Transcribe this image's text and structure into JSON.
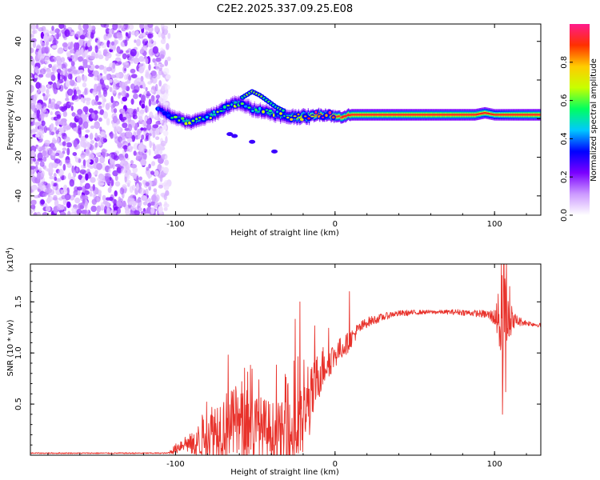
{
  "figure_title": "C2E2.2025.337.09.25.E08",
  "chart_data": [
    {
      "type": "heatmap",
      "title": "C2E2.2025.337.09.25.E08",
      "xlabel": "Height of straight line (km)",
      "ylabel": "Frequency (Hz)",
      "xlim": [
        -191,
        129
      ],
      "ylim": [
        -50,
        49
      ],
      "xticks": [
        -100,
        0,
        100
      ],
      "xtick_labels": [
        "-100",
        "0",
        "100"
      ],
      "yticks": [
        -40,
        -20,
        0,
        20,
        40
      ],
      "ytick_labels": [
        "-40",
        "-20",
        "0",
        "20",
        "40"
      ],
      "colorbar": {
        "label": "Normalized spectral amplitude",
        "range": [
          0,
          1
        ],
        "ticks": [
          0.0,
          0.2,
          0.4,
          0.6,
          0.8
        ],
        "tick_labels": [
          "0.0",
          "0.2",
          "0.4",
          "0.6",
          "0.8"
        ],
        "colormap": [
          "#ffffff",
          "#cc99ff",
          "#7a00ff",
          "#0000ff",
          "#00c8ff",
          "#00ff60",
          "#c8ff00",
          "#ffcc00",
          "#ff3000",
          "#ff1a8c"
        ]
      },
      "noise_region_x": [
        -191,
        -104
      ],
      "signal_ridge": {
        "x": [
          -111,
          -104,
          -98,
          -92,
          -86,
          -80,
          -74,
          -68,
          -62,
          -57,
          -52,
          -46,
          -41,
          -36,
          -31,
          -26,
          -21,
          -16,
          -12,
          -8,
          -4,
          0,
          4,
          10,
          20,
          35,
          50,
          65,
          80,
          88,
          94,
          100,
          106,
          115,
          129
        ],
        "frequency_hz": [
          5,
          2,
          0,
          -2,
          -1,
          1,
          3,
          6,
          8,
          7,
          5,
          4,
          3,
          2,
          1,
          1,
          1,
          1,
          2,
          2,
          2,
          1,
          1,
          2,
          2,
          2,
          2,
          2,
          2,
          2,
          3,
          2,
          2,
          2,
          2
        ],
        "amplitude": [
          0.35,
          0.45,
          0.5,
          0.55,
          0.55,
          0.5,
          0.55,
          0.6,
          0.55,
          0.5,
          0.5,
          0.55,
          0.55,
          0.55,
          0.6,
          0.7,
          0.75,
          0.8,
          0.85,
          0.88,
          0.9,
          0.92,
          0.94,
          0.96,
          0.97,
          0.97,
          0.97,
          0.97,
          0.97,
          0.95,
          0.9,
          0.85,
          0.9,
          0.95,
          0.97
        ]
      },
      "signal_branch": {
        "x": [
          -58,
          -52,
          -47,
          -42,
          -37,
          -32
        ],
        "frequency_hz": [
          11,
          14,
          12,
          9,
          6,
          4
        ]
      }
    },
    {
      "type": "line",
      "xlabel": "Height of straight line (km)",
      "ylabel": "SNR (10 * v/v)",
      "y_multiplier_label": "(x10",
      "y_multiplier_exponent": "4",
      "y_multiplier_close": ")",
      "xlim": [
        -191,
        129
      ],
      "ylim": [
        0,
        1.87
      ],
      "xticks": [
        -100,
        0,
        100
      ],
      "xtick_labels": [
        "-100",
        "0",
        "100"
      ],
      "yticks": [
        0.5,
        1.0,
        1.5
      ],
      "ytick_labels": [
        "0.5",
        "1.0",
        "1.5"
      ],
      "series": [
        {
          "name": "SNR",
          "color": "#e8322b",
          "envelope": {
            "x": [
              -191,
              -105,
              -100,
              -95,
              -88,
              -82,
              -74,
              -66,
              -58,
              -50,
              -44,
              -38,
              -32,
              -27,
              -22,
              -18,
              -14,
              -10,
              -6,
              -2,
              2,
              8,
              14,
              20,
              28,
              36,
              44,
              56,
              68,
              78,
              86,
              94,
              100,
              104,
              106,
              108,
              112,
              118,
              129
            ],
            "base": [
              0.02,
              0.02,
              0.06,
              0.12,
              0.1,
              0.2,
              0.26,
              0.3,
              0.28,
              0.26,
              0.24,
              0.22,
              0.2,
              0.18,
              0.25,
              0.4,
              0.6,
              0.8,
              0.9,
              0.95,
              1.02,
              1.1,
              1.22,
              1.3,
              1.34,
              1.38,
              1.39,
              1.4,
              1.4,
              1.4,
              1.39,
              1.38,
              1.35,
              1.3,
              1.28,
              1.33,
              1.32,
              1.3,
              1.27
            ],
            "spread": [
              0.006,
              0.006,
              0.05,
              0.08,
              0.12,
              0.25,
              0.32,
              0.35,
              0.35,
              0.35,
              0.32,
              0.3,
              0.32,
              0.36,
              0.38,
              0.35,
              0.3,
              0.25,
              0.2,
              0.15,
              0.12,
              0.1,
              0.07,
              0.05,
              0.04,
              0.03,
              0.03,
              0.02,
              0.02,
              0.03,
              0.03,
              0.04,
              0.08,
              0.4,
              0.7,
              0.3,
              0.08,
              0.03,
              0.02
            ]
          },
          "spikes": [
            {
              "x": -67,
              "y": 0.98
            },
            {
              "x": -53,
              "y": 0.88
            },
            {
              "x": -25,
              "y": 1.33
            },
            {
              "x": -22,
              "y": 1.5
            },
            {
              "x": 9,
              "y": 1.6
            },
            {
              "x": 105,
              "y": 0.4
            },
            {
              "x": 106,
              "y": 1.87
            },
            {
              "x": 107,
              "y": 0.62
            }
          ]
        }
      ]
    }
  ]
}
